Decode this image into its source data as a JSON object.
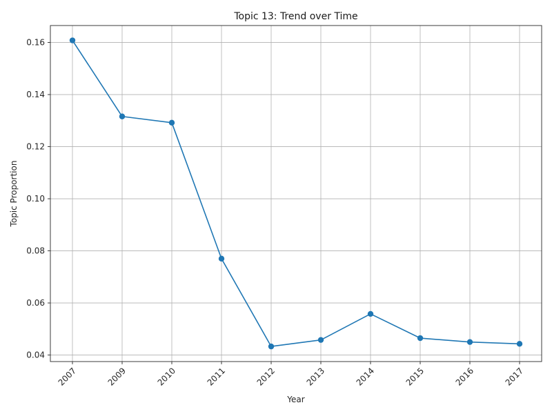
{
  "chart_data": {
    "type": "line",
    "title": "Topic 13: Trend over Time",
    "xlabel": "Year",
    "ylabel": "Topic Proportion",
    "categories": [
      "2007",
      "2009",
      "2010",
      "2011",
      "2012",
      "2013",
      "2014",
      "2015",
      "2016",
      "2017"
    ],
    "series": [
      {
        "values": [
          0.1608,
          0.1316,
          0.1292,
          0.077,
          0.0433,
          0.0458,
          0.0558,
          0.0465,
          0.045,
          0.0443
        ],
        "color": "#1f77b4",
        "marker": "circle"
      }
    ],
    "ylim": [
      0.0375,
      0.1665
    ],
    "yticks": [
      0.04,
      0.06,
      0.08,
      0.1,
      0.12,
      0.14,
      0.16
    ],
    "ytick_labels": [
      "0.04",
      "0.06",
      "0.08",
      "0.10",
      "0.12",
      "0.14",
      "0.16"
    ],
    "grid": true,
    "xtick_rotation_deg": 45
  }
}
